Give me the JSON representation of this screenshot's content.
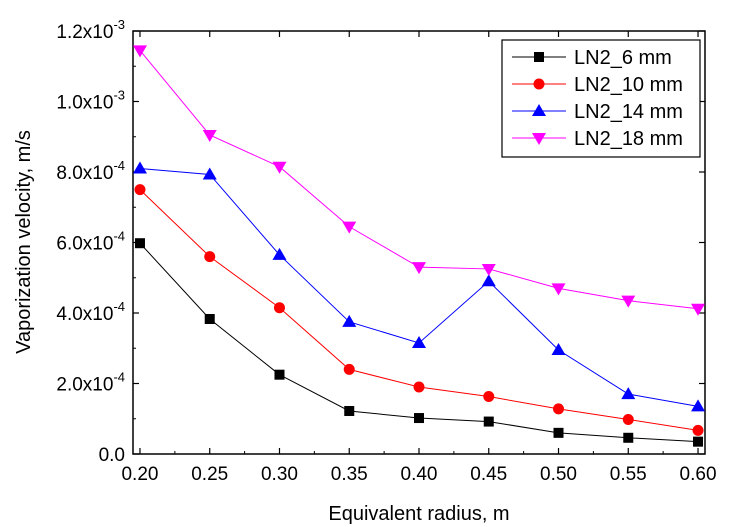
{
  "chart_data": {
    "type": "line",
    "title": "",
    "xlabel": "Equivalent radius, m",
    "ylabel": "Vaporization velocity, m/s",
    "xlim": [
      0.195,
      0.605
    ],
    "ylim": [
      0.0,
      0.0012
    ],
    "x": [
      0.2,
      0.25,
      0.3,
      0.35,
      0.4,
      0.45,
      0.5,
      0.55,
      0.6
    ],
    "xticks": [
      0.2,
      0.25,
      0.3,
      0.35,
      0.4,
      0.45,
      0.5,
      0.55,
      0.6
    ],
    "xtick_labels": [
      "0.20",
      "0.25",
      "0.30",
      "0.35",
      "0.40",
      "0.45",
      "0.50",
      "0.55",
      "0.60"
    ],
    "yticks": [
      0.0,
      0.0002,
      0.0004,
      0.0006,
      0.0008,
      0.001,
      0.0012
    ],
    "ytick_labels": [
      {
        "mantissa": "0.0",
        "exponent": ""
      },
      {
        "mantissa": "2.0x10",
        "exponent": "-4"
      },
      {
        "mantissa": "4.0x10",
        "exponent": "-4"
      },
      {
        "mantissa": "6.0x10",
        "exponent": "-4"
      },
      {
        "mantissa": "8.0x10",
        "exponent": "-4"
      },
      {
        "mantissa": "1.0x10",
        "exponent": "-3"
      },
      {
        "mantissa": "1.2x10",
        "exponent": "-3"
      }
    ],
    "grid": false,
    "legend_position": "top-right",
    "series": [
      {
        "name": "LN2_6 mm",
        "marker": "square",
        "color": "#000000",
        "values": [
          0.000598,
          0.000383,
          0.000225,
          0.000122,
          0.000102,
          9.2e-05,
          6e-05,
          4.6e-05,
          3.5e-05
        ]
      },
      {
        "name": "LN2_10 mm",
        "marker": "circle",
        "color": "#ff0000",
        "values": [
          0.00075,
          0.00056,
          0.000415,
          0.00024,
          0.00019,
          0.000163,
          0.000128,
          9.8e-05,
          6.7e-05
        ]
      },
      {
        "name": "LN2_14 mm",
        "marker": "triangle-up",
        "color": "#0000ff",
        "values": [
          0.00081,
          0.000793,
          0.000565,
          0.000375,
          0.000315,
          0.00049,
          0.000295,
          0.00017,
          0.000135
        ]
      },
      {
        "name": "LN2_18 mm",
        "marker": "triangle-down",
        "color": "#ff00ff",
        "values": [
          0.001145,
          0.000905,
          0.000815,
          0.000645,
          0.00053,
          0.000525,
          0.00047,
          0.000435,
          0.000412
        ]
      }
    ]
  }
}
